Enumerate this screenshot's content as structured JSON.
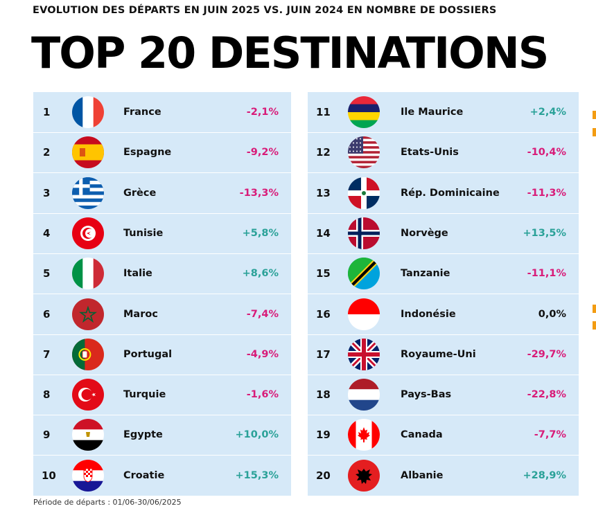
{
  "header": {
    "subtitle": "EVOLUTION DES DÉPARTS EN JUIN 2025 VS. JUIN 2024 EN NOMBRE DE DOSSIERS",
    "title": "TOP 20 DESTINATIONS"
  },
  "footnote": "Période de départs : 01/06-30/06/2025",
  "colors": {
    "panel_bg": "#d6e9f8",
    "positive": "#2aa198",
    "negative": "#d81b78",
    "neutral": "#111111"
  },
  "chart_data": {
    "type": "table",
    "title": "TOP 20 DESTINATIONS",
    "subtitle": "EVOLUTION DES DÉPARTS EN JUIN 2025 VS. JUIN 2024 EN NOMBRE DE DOSSIERS",
    "columns": [
      "rank",
      "flag",
      "country",
      "evolution"
    ],
    "rows": [
      {
        "rank": "1",
        "flag": "france-flag-icon",
        "country": "France",
        "evolution": "-2,1%",
        "value": -2.1
      },
      {
        "rank": "2",
        "flag": "spain-flag-icon",
        "country": "Espagne",
        "evolution": "-9,2%",
        "value": -9.2
      },
      {
        "rank": "3",
        "flag": "greece-flag-icon",
        "country": "Grèce",
        "evolution": "-13,3%",
        "value": -13.3
      },
      {
        "rank": "4",
        "flag": "tunisia-flag-icon",
        "country": "Tunisie",
        "evolution": "+5,8%",
        "value": 5.8
      },
      {
        "rank": "5",
        "flag": "italy-flag-icon",
        "country": "Italie",
        "evolution": "+8,6%",
        "value": 8.6
      },
      {
        "rank": "6",
        "flag": "morocco-flag-icon",
        "country": "Maroc",
        "evolution": "-7,4%",
        "value": -7.4
      },
      {
        "rank": "7",
        "flag": "portugal-flag-icon",
        "country": "Portugal",
        "evolution": "-4,9%",
        "value": -4.9
      },
      {
        "rank": "8",
        "flag": "turkey-flag-icon",
        "country": "Turquie",
        "evolution": "-1,6%",
        "value": -1.6
      },
      {
        "rank": "9",
        "flag": "egypt-flag-icon",
        "country": "Egypte",
        "evolution": "+10,0%",
        "value": 10.0
      },
      {
        "rank": "10",
        "flag": "croatia-flag-icon",
        "country": "Croatie",
        "evolution": "+15,3%",
        "value": 15.3
      },
      {
        "rank": "11",
        "flag": "mauritius-flag-icon",
        "country": "Ile Maurice",
        "evolution": "+2,4%",
        "value": 2.4
      },
      {
        "rank": "12",
        "flag": "usa-flag-icon",
        "country": "Etats-Unis",
        "evolution": "-10,4%",
        "value": -10.4
      },
      {
        "rank": "13",
        "flag": "dominican-republic-flag-icon",
        "country": "Rép. Dominicaine",
        "evolution": "-11,3%",
        "value": -11.3
      },
      {
        "rank": "14",
        "flag": "norway-flag-icon",
        "country": "Norvège",
        "evolution": "+13,5%",
        "value": 13.5
      },
      {
        "rank": "15",
        "flag": "tanzania-flag-icon",
        "country": "Tanzanie",
        "evolution": "-11,1%",
        "value": -11.1
      },
      {
        "rank": "16",
        "flag": "indonesia-flag-icon",
        "country": "Indonésie",
        "evolution": "0,0%",
        "value": 0.0
      },
      {
        "rank": "17",
        "flag": "uk-flag-icon",
        "country": "Royaume-Uni",
        "evolution": "-29,7%",
        "value": -29.7
      },
      {
        "rank": "18",
        "flag": "netherlands-flag-icon",
        "country": "Pays-Bas",
        "evolution": "-22,8%",
        "value": -22.8
      },
      {
        "rank": "19",
        "flag": "canada-flag-icon",
        "country": "Canada",
        "evolution": "-7,7%",
        "value": -7.7
      },
      {
        "rank": "20",
        "flag": "albania-flag-icon",
        "country": "Albanie",
        "evolution": "+28,9%",
        "value": 28.9
      }
    ]
  }
}
